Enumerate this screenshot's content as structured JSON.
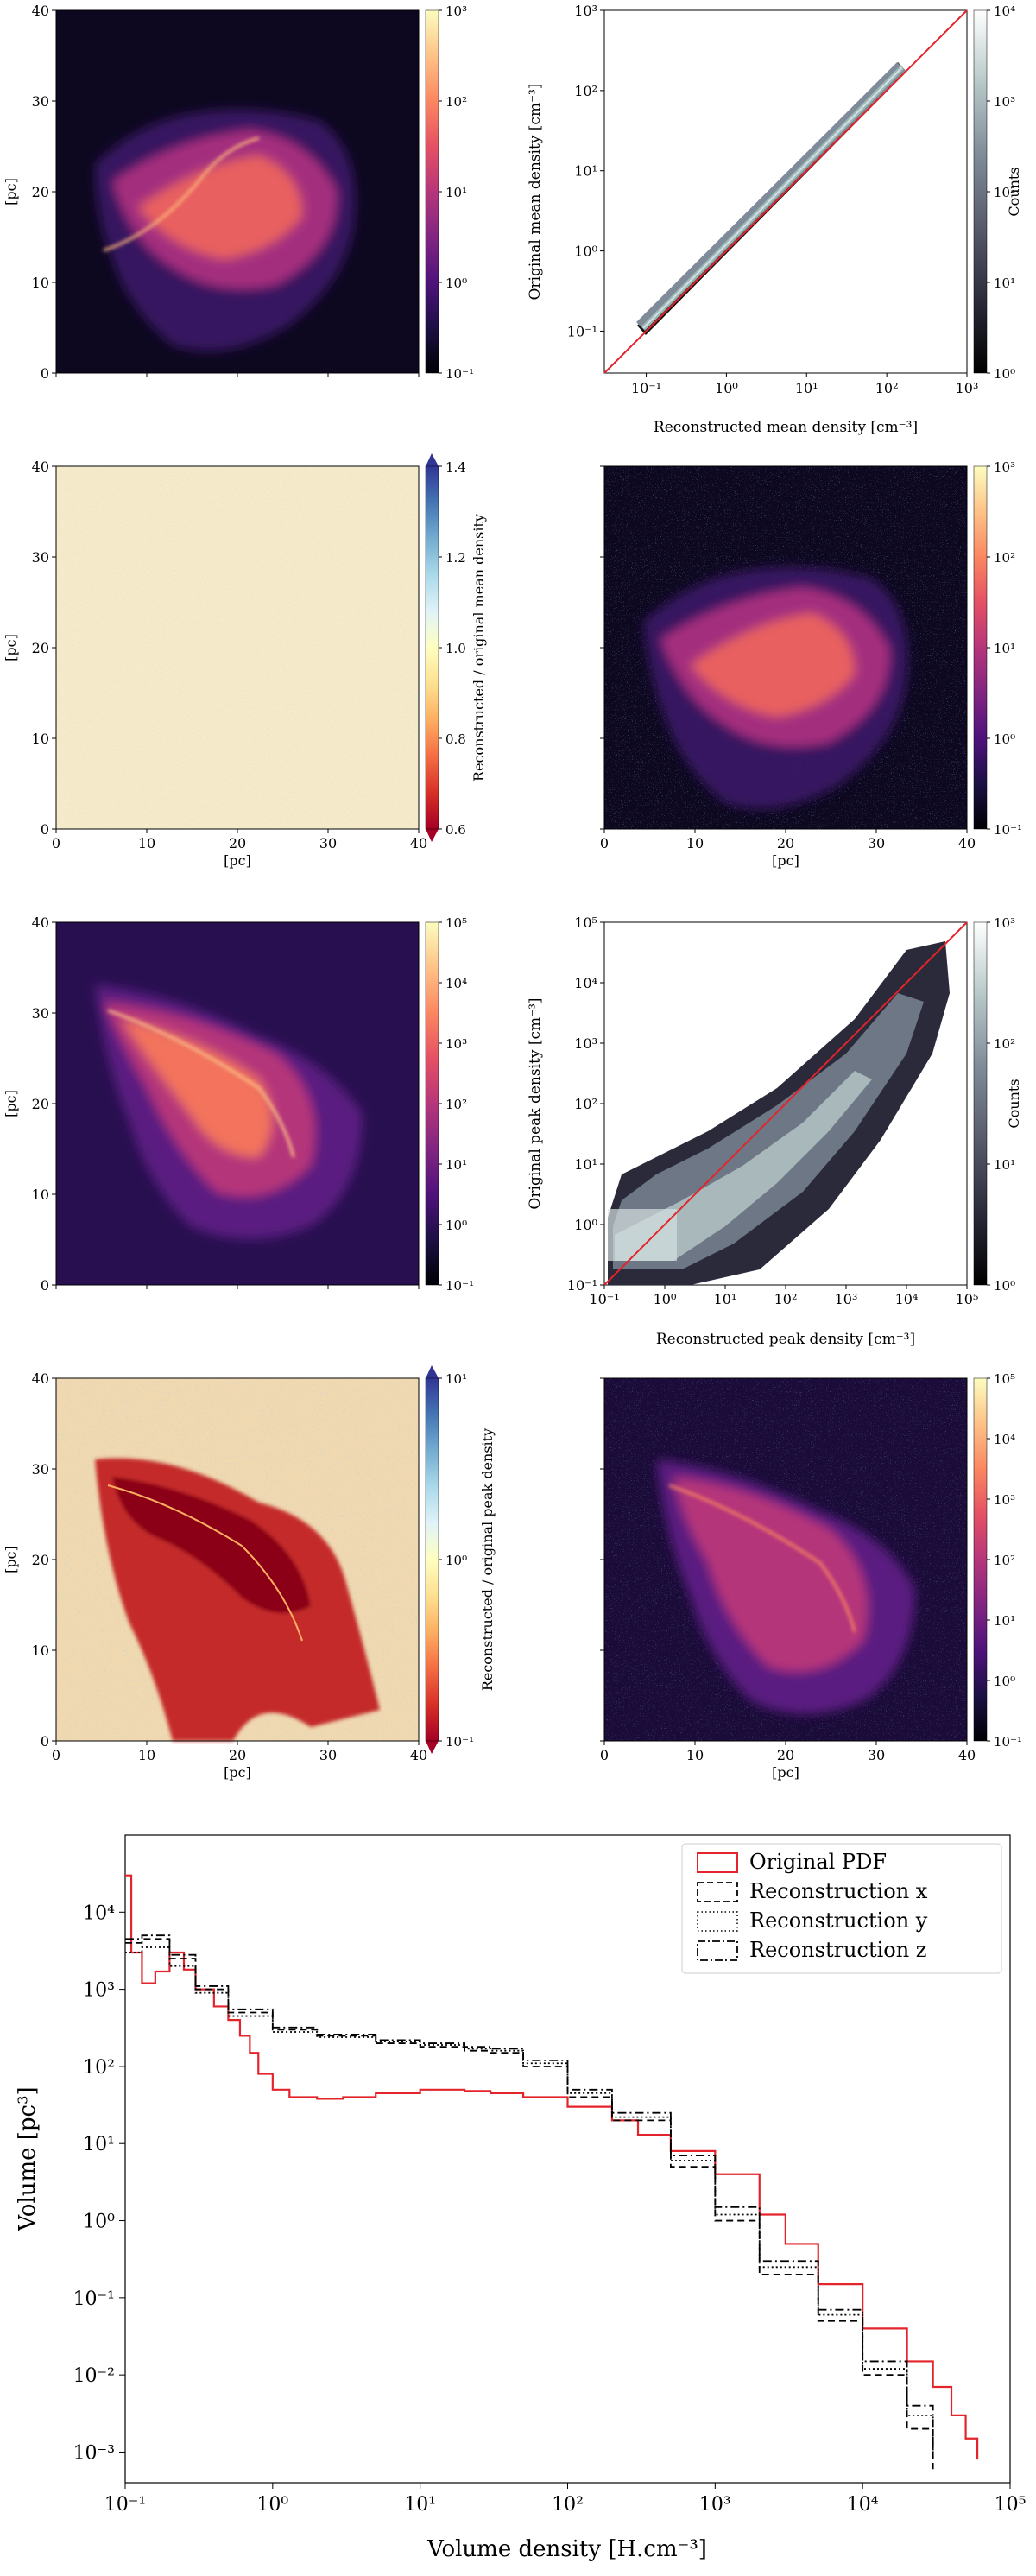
{
  "colors": {
    "ink": "#000000",
    "diagonal": "#e3242b",
    "pdf_original": "#e3242b",
    "magma": [
      "#000004",
      "#1c1044",
      "#4f127b",
      "#812581",
      "#b5367a",
      "#e55064",
      "#fb8761",
      "#fec287",
      "#fcfdbf"
    ],
    "bone": [
      "#000000",
      "#2a2a3a",
      "#575a6b",
      "#7f8b98",
      "#a9bbc0",
      "#d4e0e0",
      "#ffffff"
    ],
    "rdylbu": [
      "#a50026",
      "#d73027",
      "#f46d43",
      "#fdae61",
      "#fee090",
      "#ffffbf",
      "#e0f3f8",
      "#abd9e9",
      "#74add1",
      "#4575b4",
      "#313695"
    ],
    "field_bg": "#0d0820",
    "noise_bg": "#f3e8c5"
  },
  "spatial_axes": {
    "ticks": [
      "0",
      "10",
      "20",
      "30",
      "40"
    ],
    "label": "[pc]"
  },
  "panels": {
    "mean_map": {
      "colorbar_ticks": [
        "10⁻¹",
        "10⁰",
        "10¹",
        "10²",
        "10³"
      ]
    },
    "mean_hist": {
      "xlabel": "Reconstructed mean density [cm⁻³]",
      "ylabel": "Original mean density [cm⁻³]",
      "xticks": [
        "10⁻¹",
        "10⁰",
        "10¹",
        "10²",
        "10³"
      ],
      "yticks": [
        "10⁻¹",
        "10⁰",
        "10¹",
        "10²",
        "10³"
      ],
      "colorbar_label": "Counts",
      "colorbar_ticks": [
        "10⁰",
        "10¹",
        "10²",
        "10³",
        "10⁴"
      ]
    },
    "mean_ratio": {
      "colorbar_label": "Reconstructed / original mean density",
      "colorbar_ticks": [
        "0.6",
        "0.8",
        "1.0",
        "1.2",
        "1.4"
      ]
    },
    "mean_recon": {
      "colorbar_ticks": [
        "10⁻¹",
        "10⁰",
        "10¹",
        "10²",
        "10³"
      ]
    },
    "peak_map": {
      "colorbar_ticks": [
        "10⁻¹",
        "10⁰",
        "10¹",
        "10²",
        "10³",
        "10⁴",
        "10⁵"
      ]
    },
    "peak_hist": {
      "xlabel": "Reconstructed peak density [cm⁻³]",
      "ylabel": "Original peak density [cm⁻³]",
      "xticks": [
        "10⁻¹",
        "10⁰",
        "10¹",
        "10²",
        "10³",
        "10⁴",
        "10⁵"
      ],
      "yticks": [
        "10⁻¹",
        "10⁰",
        "10¹",
        "10²",
        "10³",
        "10⁴",
        "10⁵"
      ],
      "colorbar_label": "Counts",
      "colorbar_ticks": [
        "10⁰",
        "10¹",
        "10²",
        "10³"
      ]
    },
    "peak_ratio": {
      "colorbar_label": "Reconstructed / original peak density",
      "colorbar_ticks": [
        "10⁻¹",
        "10⁰",
        "10¹"
      ]
    },
    "peak_recon": {
      "colorbar_ticks": [
        "10⁻¹",
        "10⁰",
        "10¹",
        "10²",
        "10³",
        "10⁴",
        "10⁵"
      ]
    }
  },
  "chart_data": [
    {
      "type": "heatmap",
      "id": "mean-density-map",
      "xlim": [
        0,
        40
      ],
      "ylim": [
        0,
        40
      ],
      "colorbar": {
        "scale": "log",
        "range": [
          0.1,
          1000
        ]
      }
    },
    {
      "type": "heatmap",
      "id": "mean-density-2d-histogram",
      "xlabel": "Reconstructed mean density [cm⁻³]",
      "ylabel": "Original mean density [cm⁻³]",
      "xscale": "log",
      "yscale": "log",
      "xlim": [
        0.03,
        1000
      ],
      "ylim": [
        0.03,
        1000
      ],
      "identity_line": true,
      "counts_range": [
        1,
        10000
      ]
    },
    {
      "type": "heatmap",
      "id": "mean-density-ratio-map",
      "xlim": [
        0,
        40
      ],
      "ylim": [
        0,
        40
      ],
      "colorbar": {
        "label": "Reconstructed / original mean density",
        "range": [
          0.5,
          1.5
        ]
      }
    },
    {
      "type": "heatmap",
      "id": "mean-density-reconstructed-map",
      "xlim": [
        0,
        40
      ],
      "ylim": [
        0,
        40
      ],
      "colorbar": {
        "scale": "log",
        "range": [
          0.1,
          1000
        ]
      }
    },
    {
      "type": "heatmap",
      "id": "peak-density-map",
      "xlim": [
        0,
        40
      ],
      "ylim": [
        0,
        40
      ],
      "colorbar": {
        "scale": "log",
        "range": [
          0.1,
          100000
        ]
      }
    },
    {
      "type": "heatmap",
      "id": "peak-density-2d-histogram",
      "xlabel": "Reconstructed peak density [cm⁻³]",
      "ylabel": "Original peak density [cm⁻³]",
      "xscale": "log",
      "yscale": "log",
      "xlim": [
        0.1,
        100000
      ],
      "ylim": [
        0.1,
        100000
      ],
      "identity_line": true,
      "counts_range": [
        1,
        1500
      ]
    },
    {
      "type": "heatmap",
      "id": "peak-density-ratio-map",
      "xlim": [
        0,
        40
      ],
      "ylim": [
        0,
        40
      ],
      "colorbar": {
        "label": "Reconstructed / original peak density",
        "scale": "log",
        "range": [
          0.03,
          30
        ]
      }
    },
    {
      "type": "heatmap",
      "id": "peak-density-reconstructed-map",
      "xlim": [
        0,
        40
      ],
      "ylim": [
        0,
        40
      ],
      "colorbar": {
        "scale": "log",
        "range": [
          0.1,
          100000
        ]
      }
    },
    {
      "type": "line",
      "id": "volume-density-pdf",
      "xlabel": "Volume density [H.cm⁻³]",
      "ylabel": "Volume [pc³]",
      "xscale": "log",
      "yscale": "log",
      "xlim": [
        0.1,
        100000
      ],
      "ylim": [
        0.0004,
        100000
      ],
      "xticks": [
        "10⁻¹",
        "10⁰",
        "10¹",
        "10²",
        "10³",
        "10⁴",
        "10⁵"
      ],
      "yticks": [
        "10⁻³",
        "10⁻²",
        "10⁻¹",
        "10⁰",
        "10¹",
        "10²",
        "10³",
        "10⁴"
      ],
      "legend": "top-right",
      "series": [
        {
          "name": "Original PDF",
          "style": "solid",
          "color": "#e3242b",
          "x": [
            0.1,
            0.11,
            0.13,
            0.16,
            0.2,
            0.25,
            0.3,
            0.4,
            0.5,
            0.6,
            0.7,
            0.8,
            1,
            1.3,
            2,
            3,
            5,
            10,
            20,
            30,
            50,
            100,
            200,
            300,
            500,
            1000,
            2000,
            3000,
            5000,
            10000,
            20000,
            30000,
            40000,
            50000,
            60000
          ],
          "y": [
            30000,
            3000,
            1200,
            1700,
            3000,
            1800,
            1000,
            600,
            400,
            250,
            150,
            80,
            50,
            40,
            38,
            40,
            45,
            50,
            48,
            45,
            40,
            30,
            20,
            13,
            8,
            4,
            1.2,
            0.5,
            0.15,
            0.04,
            0.015,
            0.007,
            0.003,
            0.0015,
            0.0008
          ]
        },
        {
          "name": "Reconstruction x",
          "style": "dashed",
          "color": "#000000",
          "x": [
            0.1,
            0.13,
            0.2,
            0.3,
            0.5,
            1,
            2,
            5,
            10,
            20,
            30,
            50,
            100,
            200,
            500,
            1000,
            2000,
            5000,
            10000,
            20000,
            30000
          ],
          "y": [
            4000,
            4500,
            2500,
            1000,
            500,
            300,
            250,
            200,
            180,
            160,
            150,
            100,
            40,
            20,
            5,
            1,
            0.2,
            0.05,
            0.01,
            0.002,
            0.0006
          ]
        },
        {
          "name": "Reconstruction y",
          "style": "dotted",
          "color": "#000000",
          "x": [
            0.1,
            0.13,
            0.2,
            0.3,
            0.5,
            1,
            2,
            5,
            10,
            20,
            30,
            50,
            100,
            200,
            500,
            1000,
            2000,
            5000,
            10000,
            20000,
            30000
          ],
          "y": [
            3000,
            3500,
            2000,
            900,
            450,
            280,
            240,
            210,
            190,
            170,
            160,
            110,
            45,
            22,
            6,
            1.2,
            0.25,
            0.06,
            0.012,
            0.003,
            0.0008
          ]
        },
        {
          "name": "Reconstruction z",
          "style": "dashdot",
          "color": "#000000",
          "x": [
            0.1,
            0.13,
            0.2,
            0.3,
            0.5,
            1,
            2,
            5,
            10,
            20,
            30,
            50,
            100,
            200,
            500,
            1000,
            2000,
            5000,
            10000,
            20000,
            30000
          ],
          "y": [
            4500,
            5000,
            2800,
            1100,
            550,
            320,
            260,
            220,
            200,
            180,
            170,
            120,
            50,
            25,
            7,
            1.5,
            0.3,
            0.07,
            0.015,
            0.004,
            0.001
          ]
        }
      ]
    }
  ]
}
